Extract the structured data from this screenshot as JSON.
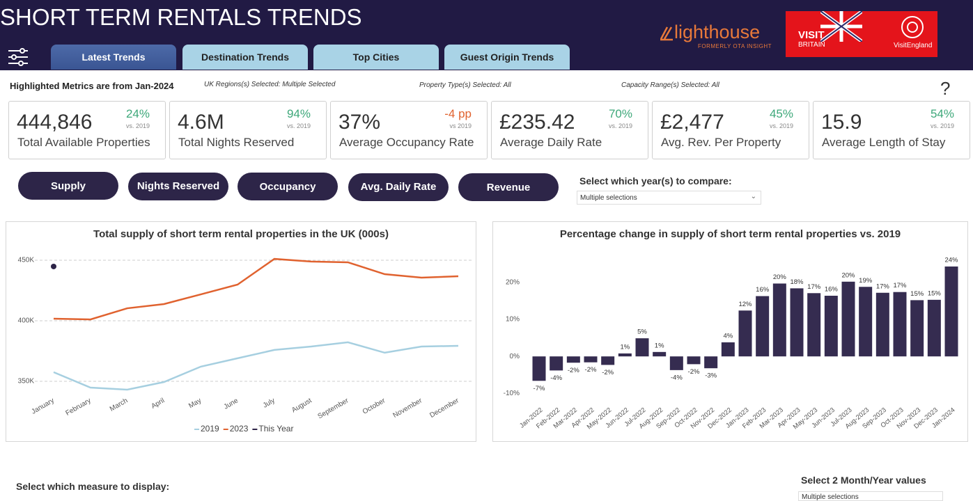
{
  "header": {
    "title": "SHORT TERM RENTALS TRENDS",
    "tabs": [
      "Latest Trends",
      "Destination Trends",
      "Top Cities",
      "Guest Origin Trends"
    ],
    "logo_lighthouse": "lighthouse",
    "logo_lighthouse_sub": "FORMERLY OTA INSIGHT",
    "logo_visit": "VISIT",
    "logo_britain": "BRITAIN",
    "logo_england": "VisitEngland"
  },
  "filters": {
    "highlight": "Highlighted Metrics are from Jan-2024",
    "regions": "UK Regions(s) Selected: Multiple Selected",
    "property": "Property Type(s) Selected: All",
    "capacity": "Capacity Range(s) Selected: All",
    "help": "?"
  },
  "kpis": [
    {
      "value": "444,846",
      "change": "24%",
      "vs": "vs. 2019",
      "name": "Total Available Properties",
      "color": "#3ea87a"
    },
    {
      "value": "4.6M",
      "change": "94%",
      "vs": "vs. 2019",
      "name": "Total Nights Reserved",
      "color": "#3ea87a"
    },
    {
      "value": "37%",
      "change": "-4 pp",
      "vs": "vs 2019",
      "name": "Average Occupancy Rate",
      "color": "#e0622f"
    },
    {
      "value": "£235.42",
      "change": "70%",
      "vs": "vs. 2019",
      "name": "Average Daily Rate",
      "color": "#3ea87a"
    },
    {
      "value": "£2,477",
      "change": "45%",
      "vs": "vs. 2019",
      "name": "Avg. Rev. Per Property",
      "color": "#3ea87a"
    },
    {
      "value": "15.9",
      "change": "54%",
      "vs": "vs. 2019",
      "name": "Average Length of Stay",
      "color": "#3ea87a"
    }
  ],
  "buttons": [
    "Supply",
    "Nights Reserved",
    "Occupancy",
    "Avg. Daily Rate",
    "Revenue"
  ],
  "year_select": {
    "label": "Select which year(s) to compare:",
    "value": "Multiple selections"
  },
  "measure_select": {
    "label": "Select which measure to display:"
  },
  "month_select": {
    "label": "Select 2 Month/Year values",
    "value": "Multiple selections"
  },
  "chart_data": [
    {
      "type": "line",
      "title": "Total supply of short term rental properties in the UK (000s)",
      "categories": [
        "January",
        "February",
        "March",
        "April",
        "May",
        "June",
        "July",
        "August",
        "September",
        "October",
        "November",
        "December"
      ],
      "series": [
        {
          "name": "2019",
          "color": "#a6cfe0",
          "values": [
            357500,
            344800,
            343100,
            349400,
            362100,
            369000,
            375900,
            378700,
            382200,
            373600,
            378700,
            379300
          ]
        },
        {
          "name": "2023",
          "color": "#e0622f",
          "values": [
            401700,
            401100,
            410300,
            413800,
            421800,
            429900,
            451100,
            448900,
            448300,
            438500,
            435600,
            436800
          ]
        },
        {
          "name": "This Year",
          "color": "#2d2447",
          "values": [
            444846,
            null,
            null,
            null,
            null,
            null,
            null,
            null,
            null,
            null,
            null,
            null
          ]
        }
      ],
      "ylim": [
        342500,
        454600
      ],
      "yticks": [
        {
          "value": 350000,
          "label": "350K"
        },
        {
          "value": 400000,
          "label": "400K"
        },
        {
          "value": 450000,
          "label": "450K"
        }
      ],
      "grid": true,
      "legend": "bottom"
    },
    {
      "type": "bar",
      "title": "Percentage change in supply of short term rental properties vs. 2019",
      "categories": [
        "Jan-2022",
        "Feb-2022",
        "Mar-2022",
        "Apr-2022",
        "May-2022",
        "Jun-2022",
        "Jul-2022",
        "Aug-2022",
        "Sep-2022",
        "Oct-2022",
        "Nov-2022",
        "Dec-2022",
        "Jan-2023",
        "Feb-2023",
        "Mar-2023",
        "Apr-2023",
        "May-2023",
        "Jun-2023",
        "Jul-2023",
        "Aug-2023",
        "Sep-2023",
        "Oct-2023",
        "Nov-2023",
        "Dec-2023",
        "Jan-2024"
      ],
      "values": [
        -6.6,
        -3.8,
        -1.7,
        -1.6,
        -2.3,
        0.8,
        4.9,
        1.2,
        -3.7,
        -2.1,
        -3.2,
        3.8,
        12.4,
        16.3,
        19.7,
        18.4,
        17.1,
        16.4,
        20.2,
        18.8,
        17.2,
        17.4,
        15.2,
        15.3,
        24.3
      ],
      "value_labels": [
        "-7%",
        "-4%",
        "-2%",
        "-2%",
        "-2%",
        "1%",
        "5%",
        "1%",
        "-4%",
        "-2%",
        "-3%",
        "4%",
        "12%",
        "16%",
        "20%",
        "18%",
        "17%",
        "16%",
        "20%",
        "19%",
        "17%",
        "17%",
        "15%",
        "15%",
        "24%"
      ],
      "color": "#352c50",
      "ylim": [
        -12,
        27.5
      ],
      "yticks": [
        {
          "value": -10,
          "label": "-10%"
        },
        {
          "value": 0,
          "label": "0%"
        },
        {
          "value": 10,
          "label": "10%"
        },
        {
          "value": 20,
          "label": "20%"
        }
      ],
      "grid": false
    }
  ]
}
